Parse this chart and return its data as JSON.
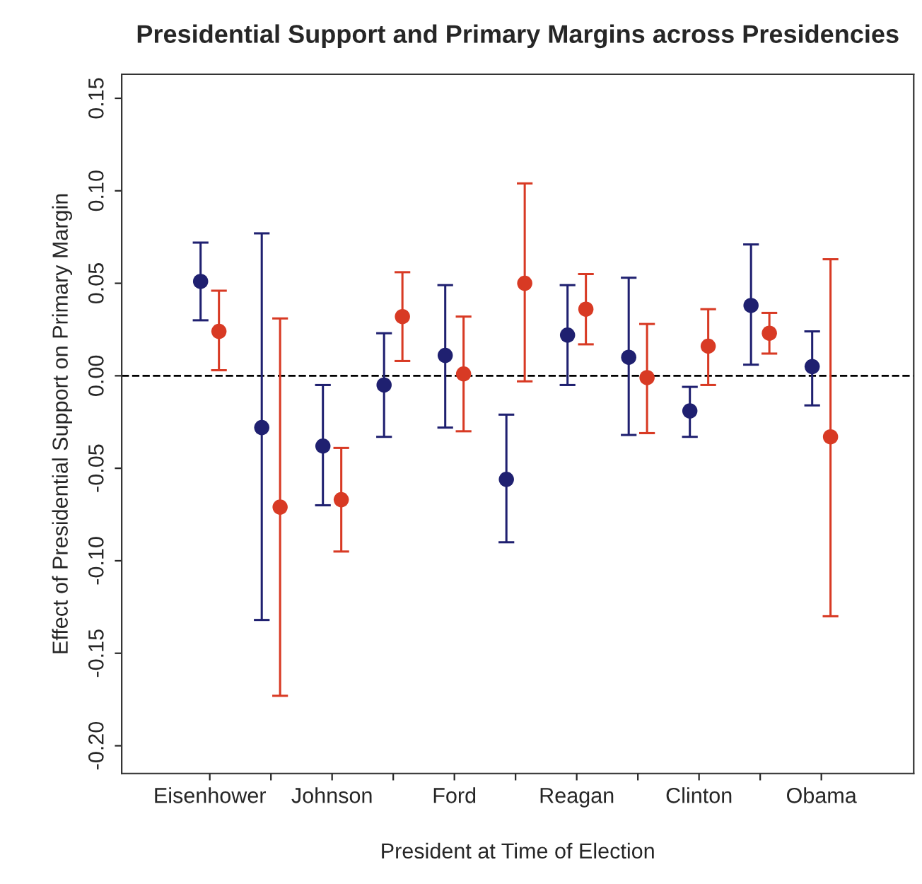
{
  "chart_data": {
    "type": "scatter",
    "title": "Presidential Support and Primary Margins across Presidencies",
    "xlabel": "President at Time of Election",
    "ylabel": "Effect of Presidential Support on Primary Margin",
    "categories": [
      "Eisenhower",
      null,
      "Johnson",
      null,
      "Ford",
      null,
      "Reagan",
      null,
      "Clinton",
      null,
      "Obama"
    ],
    "series": [
      {
        "color": "#1f2070",
        "values": [
          0.051,
          -0.028,
          -0.038,
          -0.005,
          0.011,
          -0.056,
          0.022,
          0.01,
          -0.019,
          0.038,
          0.005
        ],
        "errors": [
          [
            0.03,
            0.072
          ],
          [
            -0.132,
            0.077
          ],
          [
            -0.07,
            -0.005
          ],
          [
            -0.033,
            0.023
          ],
          [
            -0.028,
            0.049
          ],
          [
            -0.09,
            -0.021
          ],
          [
            -0.005,
            0.049
          ],
          [
            -0.032,
            0.053
          ],
          [
            -0.033,
            -0.006
          ],
          [
            0.006,
            0.071
          ],
          [
            -0.016,
            0.024
          ]
        ]
      },
      {
        "color": "#d83a24",
        "values": [
          0.024,
          -0.071,
          -0.067,
          0.032,
          0.001,
          0.05,
          0.036,
          -0.001,
          0.016,
          0.023,
          -0.033
        ],
        "errors": [
          [
            0.003,
            0.046
          ],
          [
            -0.173,
            0.031
          ],
          [
            -0.095,
            -0.039
          ],
          [
            0.008,
            0.056
          ],
          [
            -0.03,
            0.032
          ],
          [
            -0.003,
            0.104
          ],
          [
            0.017,
            0.055
          ],
          [
            -0.031,
            0.028
          ],
          [
            -0.005,
            0.036
          ],
          [
            0.012,
            0.034
          ],
          [
            -0.13,
            0.063
          ]
        ]
      }
    ],
    "ylim": [
      -0.215,
      0.163
    ],
    "yticks": [
      {
        "value": -0.2,
        "label": "-0.20"
      },
      {
        "value": -0.15,
        "label": "-0.15"
      },
      {
        "value": -0.1,
        "label": "-0.10"
      },
      {
        "value": -0.05,
        "label": "-0.05"
      },
      {
        "value": 0,
        "label": "0.00"
      },
      {
        "value": 0.05,
        "label": "0.05"
      },
      {
        "value": 0.1,
        "label": "0.10"
      },
      {
        "value": 0.15,
        "label": "0.15"
      }
    ],
    "ref_lines": [
      {
        "axis": "y",
        "value": 0,
        "color": "#000000",
        "line_style": "dashed"
      }
    ],
    "marker": "circle",
    "grid": false,
    "legend": false
  }
}
